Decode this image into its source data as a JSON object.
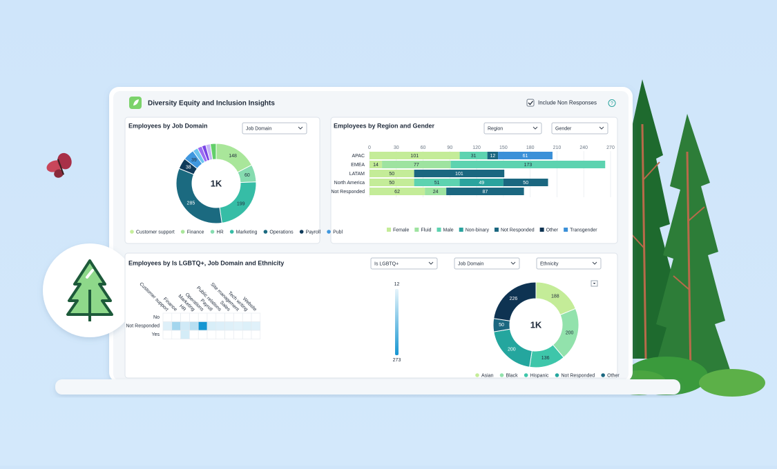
{
  "header": {
    "title": "Diversity Equity and Inclusion Insights",
    "checkbox_label": "Include Non Responses",
    "help": "?"
  },
  "job_domain_panel": {
    "title": "Employees by Job Domain",
    "dropdown": "Job Domain",
    "center_label": "1K",
    "segments": [
      {
        "value": 148,
        "color": "#a9e69a"
      },
      {
        "value": 60,
        "color": "#86dcb0"
      },
      {
        "value": 199,
        "color": "#36bda6"
      },
      {
        "value": 285,
        "color": "#1b6a80"
      },
      {
        "value": 38,
        "color": "#0f3a5a"
      },
      {
        "value": 39,
        "color": "#3f97de"
      },
      {
        "value": 18,
        "color": "#6cc4ef"
      },
      {
        "value": 16,
        "color": "#9b6cf2"
      },
      {
        "value": 14,
        "color": "#7a45e6"
      },
      {
        "value": 16,
        "color": "#c5b6f6"
      },
      {
        "value": 20,
        "color": "#63cf6a"
      }
    ],
    "legend": [
      {
        "name": "Customer support",
        "color": "#c6ee9c"
      },
      {
        "name": "Finance",
        "color": "#a9e69a"
      },
      {
        "name": "HR",
        "color": "#86dcb0"
      },
      {
        "name": "Marketing",
        "color": "#36bda6"
      },
      {
        "name": "Operations",
        "color": "#1b6a80"
      },
      {
        "name": "Payroll",
        "color": "#0f3a5a"
      },
      {
        "name": "Publ",
        "color": "#3f97de"
      }
    ]
  },
  "region_panel": {
    "title": "Employees by Region and Gender",
    "dropdowns": [
      "Region",
      "Gender"
    ],
    "categories": [
      "APAC",
      "EMEA",
      "LATAM",
      "North America",
      "Not Responded"
    ],
    "xlim": [
      0,
      270
    ],
    "xticks": [
      0,
      30,
      60,
      90,
      120,
      150,
      180,
      210,
      240,
      270
    ],
    "series": [
      {
        "name": "Female",
        "color": "#c4ec98",
        "values": [
          101,
          14,
          50,
          50,
          62
        ]
      },
      {
        "name": "Fluid",
        "color": "#9ee3a0",
        "values": [
          null,
          77,
          null,
          null,
          24
        ]
      },
      {
        "name": "Male",
        "color": "#5dd3b0",
        "values": [
          31,
          173,
          null,
          51,
          null
        ]
      },
      {
        "name": "Non-binary",
        "color": "#2aa39e",
        "values": [
          null,
          null,
          null,
          49,
          null
        ]
      },
      {
        "name": "Not Responded",
        "color": "#1b6780",
        "values": [
          12,
          null,
          101,
          50,
          87
        ]
      },
      {
        "name": "Other",
        "color": "#0e3352",
        "values": [
          null,
          null,
          null,
          null,
          null
        ]
      },
      {
        "name": "Transgender",
        "color": "#3b90d8",
        "values": [
          61,
          null,
          null,
          null,
          null
        ]
      }
    ]
  },
  "lgbtq_panel": {
    "title": "Employees by Is LGBTQ+, Job Domain and Ethnicity",
    "dropdowns": [
      "Is LGBTQ+",
      "Job Domain",
      "Ethnicity"
    ],
    "heatmap": {
      "columns": [
        "Customer support",
        "Finance",
        "HR",
        "Marketing",
        "Operations",
        "Payroll",
        "Public relations",
        "Sales",
        "Site management",
        "Tech writing",
        "Website"
      ],
      "rows": [
        "No",
        "Not Responded",
        "Yes"
      ],
      "values": [
        [
          null,
          null,
          null,
          null,
          null,
          null,
          null,
          null,
          null,
          null,
          null
        ],
        [
          22,
          95,
          40,
          70,
          273,
          30,
          25,
          22,
          18,
          24,
          20
        ],
        [
          null,
          null,
          35,
          null,
          null,
          null,
          null,
          null,
          null,
          null,
          null
        ]
      ],
      "scale": [
        12,
        273
      ],
      "scale_colors": [
        "#e6f4fb",
        "#1696d2"
      ]
    },
    "donut": {
      "center_label": "1K",
      "segments": [
        {
          "value": 188,
          "color": "#c4ec98"
        },
        {
          "value": 200,
          "color": "#92e2ac"
        },
        {
          "value": 136,
          "color": "#3ec6aa"
        },
        {
          "value": 200,
          "color": "#24a69e"
        },
        {
          "value": 50,
          "color": "#1b6780"
        },
        {
          "value": 226,
          "color": "#0e3352"
        }
      ],
      "legend": [
        {
          "name": "Asian",
          "color": "#c4ec98"
        },
        {
          "name": "Black",
          "color": "#92e2ac"
        },
        {
          "name": "Hispanic",
          "color": "#3ec6aa"
        },
        {
          "name": "Not Responded",
          "color": "#24a69e"
        },
        {
          "name": "Other",
          "color": "#1b6780"
        }
      ]
    }
  }
}
